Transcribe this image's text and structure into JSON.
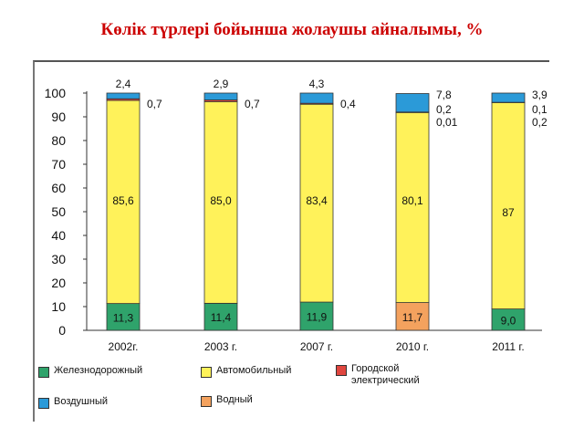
{
  "title": "Көлік түрлері бойынша жолаушы айналымы, %",
  "colors": {
    "railway": "#2fa36b",
    "road": "#fff25a",
    "urban_electric": "#e0463f",
    "air": "#2b9ad8",
    "water": "#f4a25e"
  },
  "chart_data": {
    "type": "bar",
    "stacked": true,
    "categories": [
      "2002г.",
      "2003 г.",
      "2007 г.",
      "2010 г.",
      "2011 г."
    ],
    "ylim": [
      0,
      100
    ],
    "yticks": [
      "0",
      "10",
      "20",
      "30",
      "40",
      "50",
      "60",
      "70",
      "80",
      "90",
      "100"
    ],
    "series": [
      {
        "key": "railway",
        "name": "Железнодорожный",
        "values": [
          11.3,
          11.4,
          11.9,
          0,
          9.0
        ],
        "labels": [
          "11,3",
          "11,4",
          "11,9",
          "",
          "9,0"
        ]
      },
      {
        "key": "water",
        "name": "Водный",
        "values": [
          0,
          0,
          0,
          11.7,
          0
        ],
        "labels": [
          "",
          "",
          "",
          "11,7",
          ""
        ]
      },
      {
        "key": "road",
        "name": "Автомобильный",
        "values": [
          85.6,
          85.0,
          83.4,
          80.1,
          87.0
        ],
        "labels": [
          "85,6",
          "85,0",
          "83,4",
          "80,1",
          "87"
        ]
      },
      {
        "key": "urban_electric",
        "name": "Городской\nэлектрический",
        "values": [
          0.7,
          0.7,
          0.4,
          0.2,
          0.1
        ],
        "labels": [
          "0,7",
          "0,7",
          "0,4",
          "0,2",
          "0,1"
        ]
      },
      {
        "key": "air",
        "name": "Воздушный",
        "values": [
          2.4,
          2.9,
          4.3,
          7.8,
          3.9
        ],
        "labels": [
          "2,4",
          "2,9",
          "4,3",
          "7,8",
          "3,9"
        ]
      }
    ],
    "extra_labels": {
      "2010 г.": [
        "0,01"
      ],
      "2011 г.": [
        "0,2"
      ]
    }
  },
  "legend": [
    {
      "key": "railway",
      "label": "Железнодорожный"
    },
    {
      "key": "road",
      "label": "Автомобильный"
    },
    {
      "key": "urban_electric",
      "label": "Городской\nэлектрический"
    },
    {
      "key": "air",
      "label": "Воздушный"
    },
    {
      "key": "water",
      "label": "Водный"
    }
  ]
}
